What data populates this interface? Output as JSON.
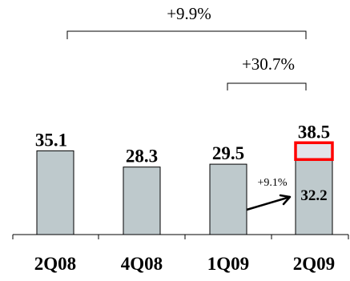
{
  "chart_data": {
    "type": "bar",
    "title": "",
    "xlabel": "",
    "ylabel": "",
    "ylim": [
      0,
      40
    ],
    "grid": false,
    "legend": "none",
    "categories": [
      "2Q08",
      "4Q08",
      "1Q09",
      "2Q09"
    ],
    "values": [
      35.1,
      28.3,
      29.5,
      38.5
    ],
    "value_labels": [
      "35.1",
      "28.3",
      "29.5",
      "38.5"
    ],
    "inner_segment": {
      "category": "2Q09",
      "value": 32.2,
      "label": "32.2",
      "highlight_color": "#ff0000",
      "highlight_fill": "#e2e4ea"
    },
    "annotations": [
      {
        "text": "+9.9%",
        "from": "2Q08",
        "to": "2Q09"
      },
      {
        "text": "+30.7%",
        "from": "1Q09",
        "to": "2Q09"
      },
      {
        "text": "+9.1%",
        "from": "1Q09",
        "to": "2Q09"
      }
    ],
    "colors": {
      "bar": "#bec9cc",
      "bar_stroke": "#000000",
      "highlight": "#ff0000"
    }
  }
}
